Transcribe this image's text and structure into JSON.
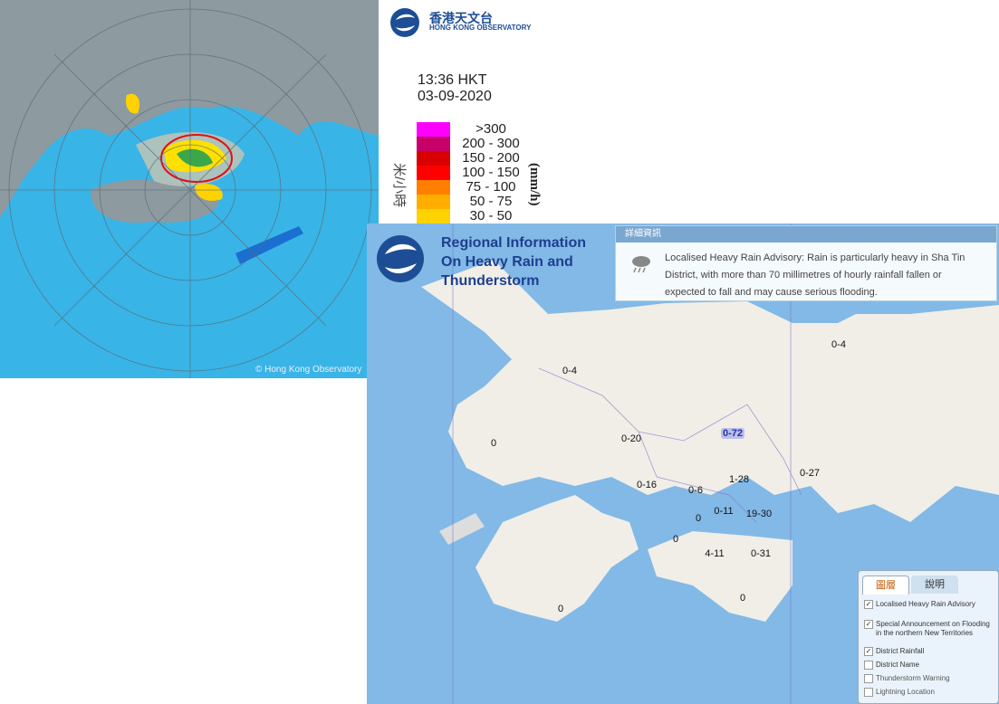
{
  "radar": {
    "logo_zh": "香港天文台",
    "logo_en": "HONG KONG OBSERVATORY",
    "time": "13:36 HKT",
    "date": "03-09-2020",
    "unit_zh": "米/小時",
    "unit_en": "(mm/h)",
    "copyright": "© Hong Kong Observatory",
    "legend": [
      {
        "label": ">300",
        "color": "#ff00ff"
      },
      {
        "label": "200 - 300",
        "color": "#c8006a"
      },
      {
        "label": "150 - 200",
        "color": "#d80000"
      },
      {
        "label": "100 - 150",
        "color": "#ff0000"
      },
      {
        "label": "75 - 100",
        "color": "#ff8000"
      },
      {
        "label": "50 - 75",
        "color": "#ffae00"
      },
      {
        "label": "30 - 50",
        "color": "#ffd200"
      }
    ]
  },
  "map": {
    "title": "Regional Information On Heavy Rain and Thunderstorm",
    "info_header": "詳細資訊",
    "advisory": "Localised Heavy Rain Advisory: Rain is particularly heavy in Sha Tin District, with more than 70 millimetres of hourly rainfall fallen or expected to fall and may cause serious flooding.",
    "districts": [
      "0-4",
      "0-4",
      "0",
      "0-20",
      "0-72",
      "0-27",
      "0-16",
      "0-6",
      "1-28",
      "0-11",
      "0",
      "19-30",
      "0",
      "4-11",
      "0-31",
      "0",
      "0"
    ],
    "tabs": [
      "圖層",
      "說明"
    ],
    "layers": [
      {
        "label": "Localised Heavy Rain Advisory",
        "checked": true
      },
      {
        "label": "Special Announcement on Flooding in the northern New Territories",
        "checked": true
      },
      {
        "label": "District Rainfall",
        "checked": true
      },
      {
        "label": "District Name",
        "checked": false
      },
      {
        "label": "Thunderstorm Warning",
        "checked": false
      },
      {
        "label": "Lightning Location",
        "checked": false
      }
    ]
  }
}
